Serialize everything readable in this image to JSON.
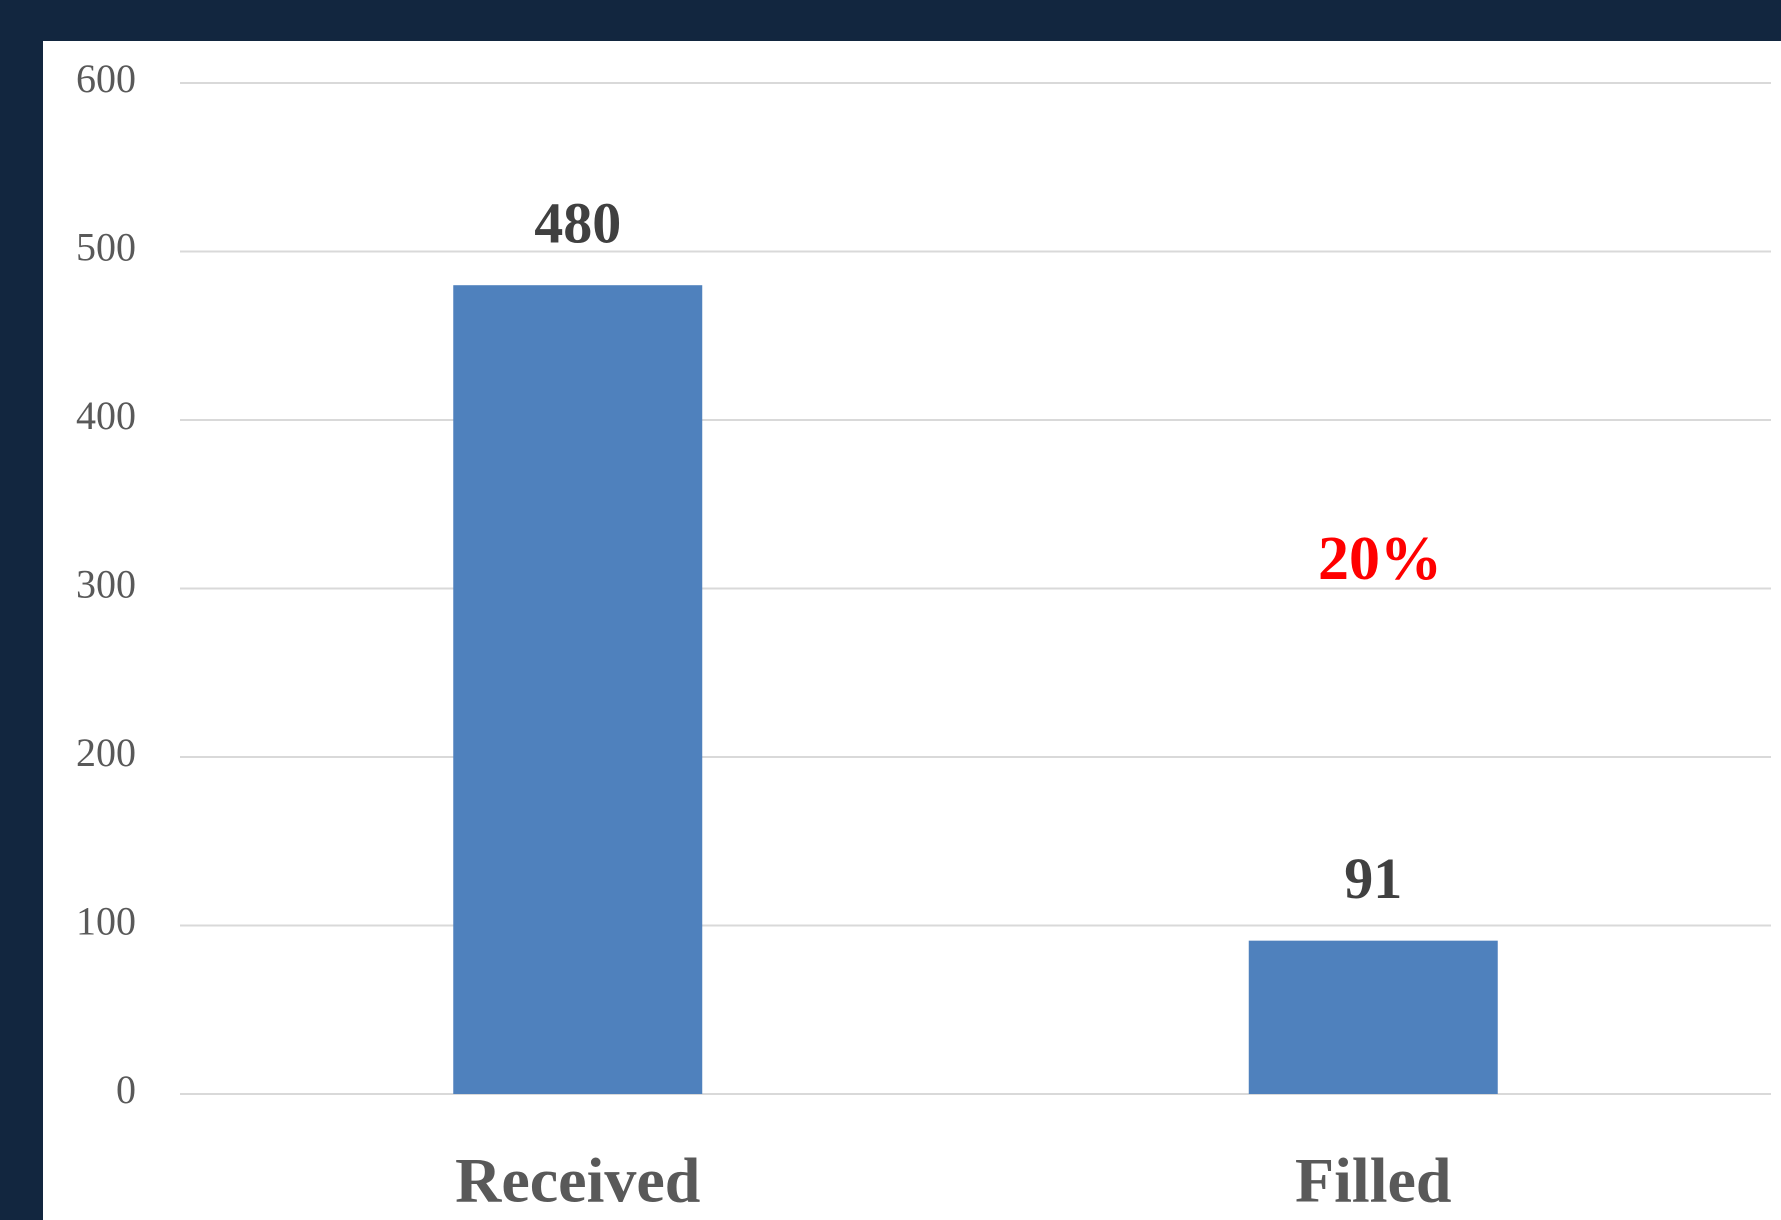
{
  "chart_data": {
    "type": "bar",
    "categories": [
      "Received",
      "Filled"
    ],
    "values": [
      480,
      91
    ],
    "color": "#4f81bd",
    "ylim": [
      0,
      600
    ],
    "yticks": [
      0,
      100,
      200,
      300,
      400,
      500,
      600
    ],
    "grid": true,
    "annotation": "20%"
  }
}
